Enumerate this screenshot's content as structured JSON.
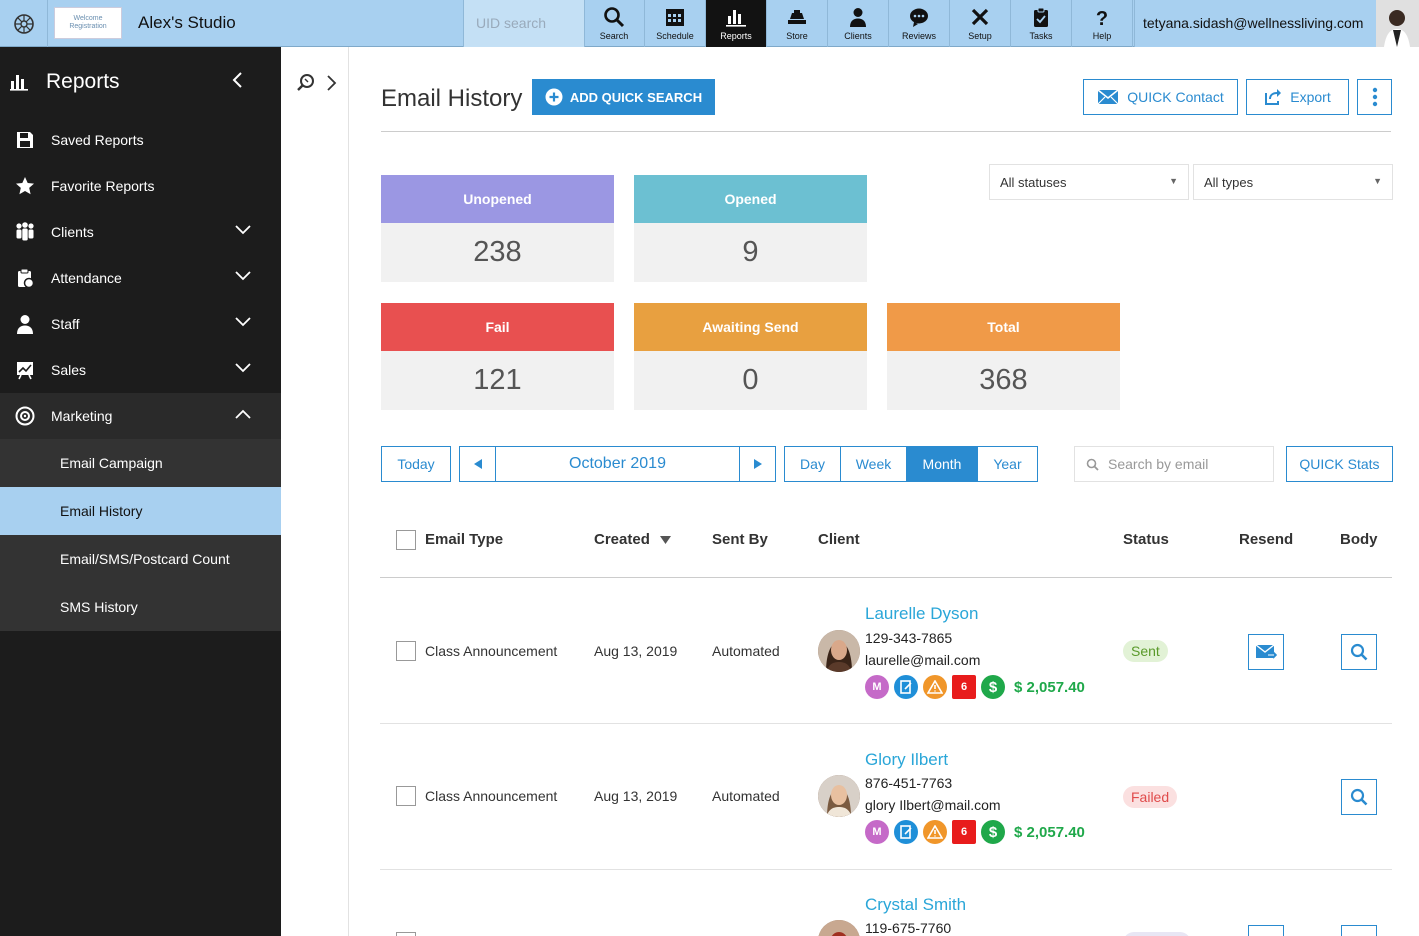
{
  "topbar": {
    "studio_name": "Alex's Studio",
    "studio_logo_text": "Welcome Registration",
    "uid_placeholder": "UID search",
    "nav": [
      {
        "label": "Search",
        "icon": "search-icon"
      },
      {
        "label": "Schedule",
        "icon": "calendar-icon"
      },
      {
        "label": "Reports",
        "icon": "bar-chart-icon"
      },
      {
        "label": "Store",
        "icon": "store-icon"
      },
      {
        "label": "Clients",
        "icon": "user-icon"
      },
      {
        "label": "Reviews",
        "icon": "chat-icon"
      },
      {
        "label": "Setup",
        "icon": "tools-icon"
      },
      {
        "label": "Tasks",
        "icon": "clipboard-icon"
      },
      {
        "label": "Help",
        "icon": "question-icon"
      }
    ],
    "user_email": "tetyana.sidash@wellnessliving.com"
  },
  "sidebar": {
    "title": "Reports",
    "items": [
      {
        "label": "Saved Reports",
        "icon": "save-icon"
      },
      {
        "label": "Favorite Reports",
        "icon": "star-icon"
      },
      {
        "label": "Clients",
        "icon": "clients-icon"
      },
      {
        "label": "Attendance",
        "icon": "attendance-icon"
      },
      {
        "label": "Staff",
        "icon": "staff-icon"
      },
      {
        "label": "Sales",
        "icon": "sales-icon"
      },
      {
        "label": "Marketing",
        "icon": "target-icon"
      }
    ],
    "marketing_sub": [
      "Email Campaign",
      "Email History",
      "Email/SMS/Postcard Count",
      "SMS History"
    ]
  },
  "page": {
    "title": "Email History",
    "add_quick_search": "ADD QUICK SEARCH",
    "quick_contact": "QUICK Contact",
    "export": "Export",
    "status_filter": "All statuses",
    "type_filter": "All types"
  },
  "stats": [
    {
      "label": "Unopened",
      "value": "238",
      "color": "#9b97e3"
    },
    {
      "label": "Opened",
      "value": "9",
      "color": "#6cc0d2"
    },
    {
      "label": "Fail",
      "value": "121",
      "color": "#e85050"
    },
    {
      "label": "Awaiting Send",
      "value": "0",
      "color": "#e8a040"
    },
    {
      "label": "Total",
      "value": "368",
      "color": "#f09a48"
    }
  ],
  "datebar": {
    "today": "Today",
    "period": "October 2019",
    "views": [
      "Day",
      "Week",
      "Month",
      "Year"
    ],
    "active_view": "Month",
    "search_placeholder": "Search by email",
    "quick_stats": "QUICK Stats"
  },
  "table": {
    "headers": {
      "email_type": "Email Type",
      "created": "Created",
      "sent_by": "Sent By",
      "client": "Client",
      "status": "Status",
      "resend": "Resend",
      "body": "Body"
    },
    "rows": [
      {
        "email_type": "Class Announcement",
        "created": "Aug 13, 2019",
        "sent_by": "Automated",
        "client_name": "Laurelle Dyson",
        "phone": "129-343-7865",
        "email": "laurelle@mail.com",
        "badge_m": "M",
        "badge_num": "6",
        "amount": "$ 2,057.40",
        "status": "Sent",
        "resend": true
      },
      {
        "email_type": "Class Announcement",
        "created": "Aug 13, 2019",
        "sent_by": "Automated",
        "client_name": "Glory Ilbert",
        "phone": "876-451-7763",
        "email": "glory Ilbert@mail.com",
        "badge_m": "M",
        "badge_num": "6",
        "amount": "$ 2,057.40",
        "status": "Failed",
        "resend": false
      },
      {
        "client_name": "Crystal Smith",
        "phone": "119-675-7760"
      }
    ]
  }
}
